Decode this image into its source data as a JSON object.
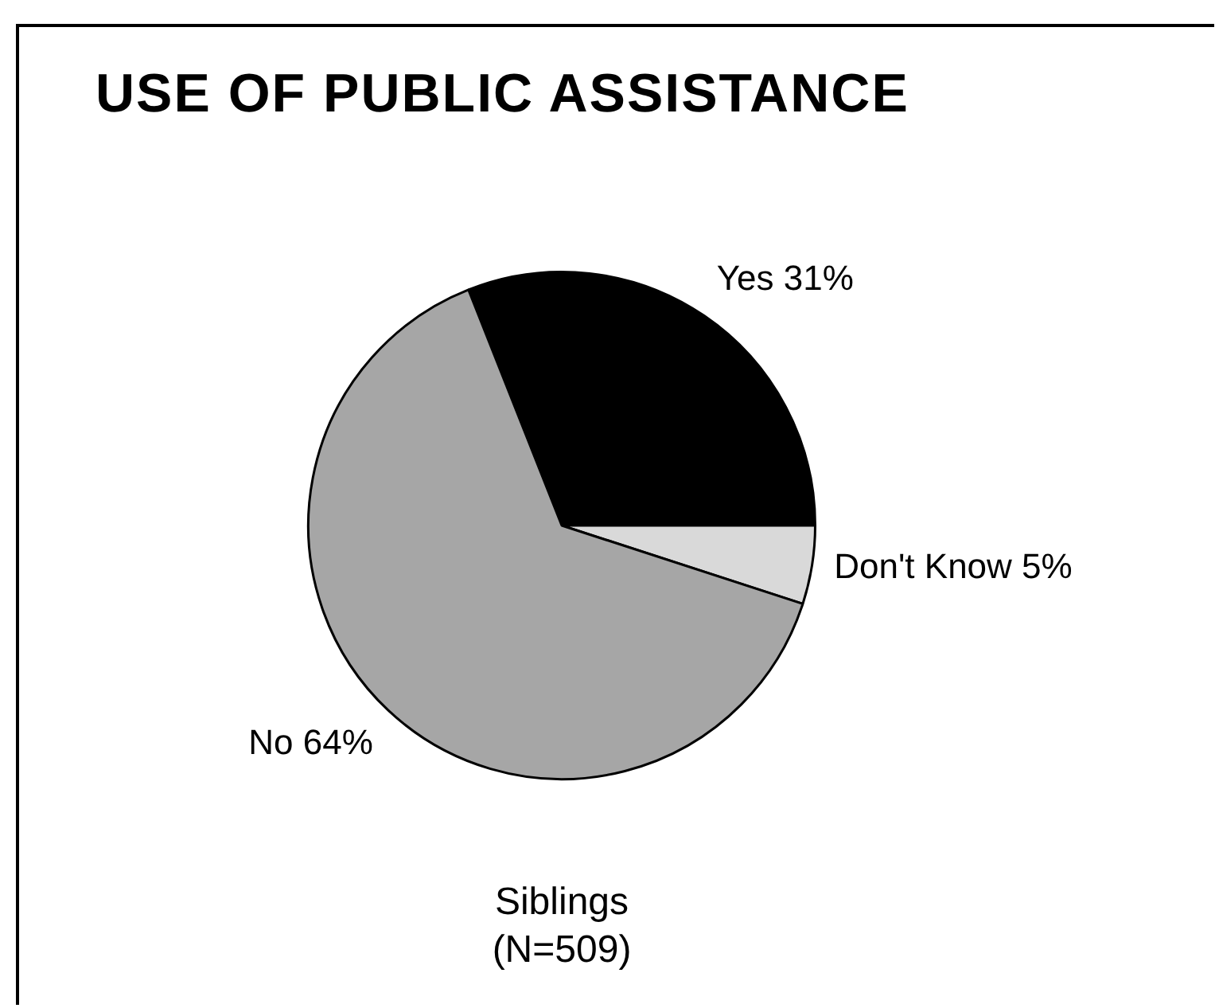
{
  "chart_data": {
    "type": "pie",
    "title": "USE OF PUBLIC ASSISTANCE",
    "categories": [
      "Yes",
      "Don't Know",
      "No"
    ],
    "values": [
      31,
      5,
      64
    ],
    "colors": [
      "#000000",
      "#d9d9d9",
      "#a6a6a6"
    ],
    "value_labels": [
      "31%",
      "5%",
      "64%"
    ],
    "legend": false,
    "annotations": [
      "Siblings",
      "(N=509)"
    ]
  }
}
